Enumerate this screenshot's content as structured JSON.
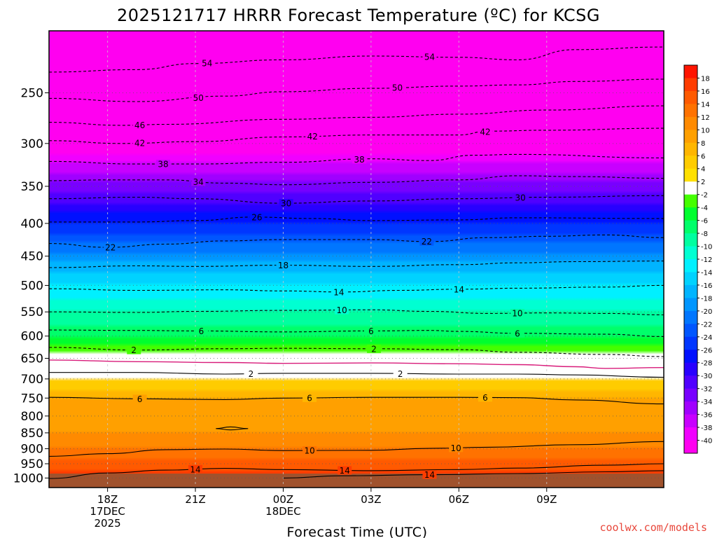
{
  "title": "2025121717 HRRR Forecast Temperature (ºC) for KCSG",
  "xlabel": "Forecast Time (UTC)",
  "credit": "coolwx.com/models",
  "colors": {
    "ground": "#a0522d",
    "background": "#ffffff",
    "freezing_line": "#d81b7a",
    "contour": "#000000"
  },
  "chart_data": {
    "type": "heatmap",
    "title": "2025121717 HRRR Forecast Temperature (ºC) for KCSG",
    "xlabel": "Forecast Time (UTC)",
    "ylabel": "",
    "x_hours": [
      -1,
      20
    ],
    "x_ticks": [
      {
        "hour": 1,
        "lines": [
          "18Z",
          "17DEC",
          "2025"
        ]
      },
      {
        "hour": 4,
        "lines": [
          "21Z"
        ]
      },
      {
        "hour": 7,
        "lines": [
          "00Z",
          "18DEC"
        ]
      },
      {
        "hour": 10,
        "lines": [
          "03Z"
        ]
      },
      {
        "hour": 13,
        "lines": [
          "06Z"
        ]
      },
      {
        "hour": 16,
        "lines": [
          "09Z"
        ]
      }
    ],
    "y_ticks": [
      250,
      300,
      350,
      400,
      450,
      500,
      550,
      600,
      650,
      700,
      750,
      800,
      850,
      900,
      950,
      1000
    ],
    "y_range_hPa": [
      200,
      1035
    ],
    "y_scale": "log-pressure",
    "grid": true,
    "colorbar_ticks": [
      "18",
      "16",
      "14",
      "12",
      "10",
      "8",
      "6",
      "4",
      "2",
      "-2",
      "-4",
      "-6",
      "-8",
      "-10",
      "-12",
      "-14",
      "-16",
      "-18",
      "-20",
      "-22",
      "-24",
      "-26",
      "-28",
      "-30",
      "-32",
      "-34",
      "-36",
      "-38",
      "-40"
    ],
    "colorbar_colors": [
      "#ff1400",
      "#ff3c00",
      "#ff5a00",
      "#ff7200",
      "#ff8a00",
      "#ffa000",
      "#ffb600",
      "#ffcc00",
      "#ffe000",
      "#ffffff",
      "#44ff00",
      "#00ff2e",
      "#00ff6a",
      "#00ffa0",
      "#00ffd2",
      "#00f0ff",
      "#00d2ff",
      "#00b4ff",
      "#0096ff",
      "#0076ff",
      "#0056ff",
      "#0036ff",
      "#0010ff",
      "#2800ff",
      "#5000ff",
      "#7800ff",
      "#a000ff",
      "#c800ff",
      "#f000ff",
      "#ff00f0"
    ],
    "profile": [
      {
        "p": 1000,
        "t": 16
      },
      {
        "p": 950,
        "t": 13
      },
      {
        "p": 900,
        "t": 10
      },
      {
        "p": 850,
        "t": 8
      },
      {
        "p": 800,
        "t": 7
      },
      {
        "p": 750,
        "t": 6
      },
      {
        "p": 700,
        "t": 2
      },
      {
        "p": 650,
        "t": 0
      },
      {
        "p": 600,
        "t": -6
      },
      {
        "p": 550,
        "t": -10
      },
      {
        "p": 500,
        "t": -14
      },
      {
        "p": 450,
        "t": -19
      },
      {
        "p": 400,
        "t": -26
      },
      {
        "p": 350,
        "t": -33
      },
      {
        "p": 300,
        "t": -42
      },
      {
        "p": 250,
        "t": -50
      },
      {
        "p": 220,
        "t": -54
      }
    ],
    "contours": [
      {
        "level": 54,
        "style": "dashed",
        "points": [
          [
            -1,
            232
          ],
          [
            2,
            230
          ],
          [
            4,
            225
          ],
          [
            7,
            222
          ],
          [
            10,
            219
          ],
          [
            13,
            220
          ],
          [
            15,
            222
          ],
          [
            17,
            214
          ],
          [
            20,
            212
          ]
        ],
        "labels": [
          {
            "hour": 4.4,
            "text": "54"
          },
          {
            "hour": 12,
            "text": "54"
          }
        ]
      },
      {
        "level": 50,
        "style": "dashed",
        "points": [
          [
            -1,
            255
          ],
          [
            2,
            258
          ],
          [
            5,
            253
          ],
          [
            7,
            249
          ],
          [
            10,
            246
          ],
          [
            13,
            244
          ],
          [
            15,
            243
          ],
          [
            17,
            240
          ],
          [
            20,
            238
          ]
        ],
        "labels": [
          {
            "hour": 4.1,
            "text": "50"
          },
          {
            "hour": 10.9,
            "text": "50"
          }
        ]
      },
      {
        "level": 46,
        "style": "dashed",
        "points": [
          [
            -1,
            278
          ],
          [
            1.5,
            281
          ],
          [
            3,
            280
          ],
          [
            7,
            275
          ],
          [
            10,
            273
          ],
          [
            13,
            270
          ],
          [
            16,
            266
          ],
          [
            20,
            262
          ]
        ],
        "labels": [
          {
            "hour": 2.1,
            "text": "46"
          }
        ]
      },
      {
        "level": 42,
        "style": "dashed",
        "points": [
          [
            -1,
            297
          ],
          [
            1.5,
            300
          ],
          [
            4,
            298
          ],
          [
            7,
            293
          ],
          [
            10,
            291
          ],
          [
            13,
            291
          ],
          [
            14,
            287
          ],
          [
            16,
            286
          ],
          [
            20,
            284
          ]
        ],
        "labels": [
          {
            "hour": 2.1,
            "text": "42"
          },
          {
            "hour": 8,
            "text": "42"
          },
          {
            "hour": 13.9,
            "text": "42"
          }
        ]
      },
      {
        "level": 38,
        "style": "dashed",
        "points": [
          [
            -1,
            320
          ],
          [
            2,
            323
          ],
          [
            4,
            323
          ],
          [
            7,
            321
          ],
          [
            10,
            317
          ],
          [
            12,
            319
          ],
          [
            13.5,
            313
          ],
          [
            15,
            312
          ],
          [
            20,
            316
          ]
        ],
        "labels": [
          {
            "hour": 2.9,
            "text": "38"
          },
          {
            "hour": 9.6,
            "text": "38"
          }
        ]
      },
      {
        "level": 34,
        "style": "dashed",
        "points": [
          [
            -1,
            343
          ],
          [
            1,
            342
          ],
          [
            3,
            342
          ],
          [
            5,
            346
          ],
          [
            7,
            348
          ],
          [
            10,
            345
          ],
          [
            13,
            342
          ],
          [
            15,
            337
          ],
          [
            17,
            338
          ],
          [
            20,
            340
          ]
        ],
        "labels": [
          {
            "hour": 4.1,
            "text": "34"
          }
        ]
      },
      {
        "level": 30,
        "style": "dashed",
        "points": [
          [
            -1,
            366
          ],
          [
            2,
            364
          ],
          [
            4,
            366
          ],
          [
            7,
            372
          ],
          [
            10,
            369
          ],
          [
            13,
            366
          ],
          [
            16,
            364
          ],
          [
            20,
            362
          ]
        ],
        "labels": [
          {
            "hour": 7.1,
            "text": "30"
          },
          {
            "hour": 15.1,
            "text": "30"
          }
        ]
      },
      {
        "level": 26,
        "style": "dashed",
        "points": [
          [
            -1,
            398
          ],
          [
            2,
            398
          ],
          [
            4,
            396
          ],
          [
            6,
            391
          ],
          [
            8,
            393
          ],
          [
            10,
            396
          ],
          [
            13,
            395
          ],
          [
            15,
            392
          ],
          [
            20,
            393
          ]
        ],
        "labels": [
          {
            "hour": 6.1,
            "text": "26"
          }
        ]
      },
      {
        "level": 22,
        "style": "dashed",
        "points": [
          [
            -1,
            430
          ],
          [
            1,
            436
          ],
          [
            3,
            431
          ],
          [
            5,
            426
          ],
          [
            7,
            424
          ],
          [
            10,
            424
          ],
          [
            12,
            427
          ],
          [
            14,
            421
          ],
          [
            16,
            419
          ],
          [
            18,
            417
          ],
          [
            20,
            421
          ]
        ],
        "labels": [
          {
            "hour": 1.1,
            "text": "22"
          },
          {
            "hour": 11.9,
            "text": "22"
          }
        ]
      },
      {
        "level": 18,
        "style": "dashed",
        "points": [
          [
            -1,
            469
          ],
          [
            2,
            466
          ],
          [
            4,
            467
          ],
          [
            7,
            465
          ],
          [
            10,
            467
          ],
          [
            13,
            464
          ],
          [
            15,
            461
          ],
          [
            17,
            459
          ],
          [
            20,
            458
          ]
        ],
        "labels": [
          {
            "hour": 7,
            "text": "18"
          }
        ]
      },
      {
        "level": 14,
        "style": "dashed",
        "points": [
          [
            -1,
            506
          ],
          [
            2,
            509
          ],
          [
            5,
            508
          ],
          [
            7,
            510
          ],
          [
            9,
            512
          ],
          [
            11,
            509
          ],
          [
            13,
            507
          ],
          [
            15,
            505
          ],
          [
            18,
            503
          ],
          [
            20,
            500
          ]
        ],
        "labels": [
          {
            "hour": 8.9,
            "text": "14"
          },
          {
            "hour": 13,
            "text": "14"
          }
        ]
      },
      {
        "level": 10,
        "style": "dashed",
        "points": [
          [
            -1,
            550
          ],
          [
            2,
            551
          ],
          [
            4,
            549
          ],
          [
            7,
            547
          ],
          [
            10,
            546
          ],
          [
            12,
            549
          ],
          [
            14,
            553
          ],
          [
            16,
            552
          ],
          [
            18,
            553
          ],
          [
            20,
            556
          ]
        ],
        "labels": [
          {
            "hour": 9,
            "text": "10"
          },
          {
            "hour": 15,
            "text": "10"
          }
        ]
      },
      {
        "level": 6,
        "style": "dashed",
        "points": [
          [
            -1,
            587
          ],
          [
            2,
            588
          ],
          [
            4,
            589
          ],
          [
            7,
            591
          ],
          [
            10,
            589
          ],
          [
            12,
            588
          ],
          [
            13,
            590
          ],
          [
            15,
            594
          ],
          [
            18,
            596
          ],
          [
            20,
            601
          ]
        ],
        "labels": [
          {
            "hour": 4.2,
            "text": "6"
          },
          {
            "hour": 10,
            "text": "6"
          },
          {
            "hour": 15,
            "text": "6"
          }
        ]
      },
      {
        "level": 2,
        "style": "dashed",
        "points": [
          [
            -1,
            625
          ],
          [
            2,
            631
          ],
          [
            5,
            628
          ],
          [
            7,
            627
          ],
          [
            10,
            628
          ],
          [
            13,
            630
          ],
          [
            15,
            636
          ],
          [
            18,
            641
          ],
          [
            20,
            646
          ]
        ],
        "labels": [
          {
            "hour": 1.9,
            "text": "2"
          },
          {
            "hour": 10.1,
            "text": "2"
          }
        ]
      },
      {
        "level": 0,
        "style": "freezing",
        "points": [
          [
            -1,
            654
          ],
          [
            2,
            658
          ],
          [
            5,
            660
          ],
          [
            7,
            662
          ],
          [
            10,
            661
          ],
          [
            13,
            663
          ],
          [
            15,
            665
          ],
          [
            17,
            670
          ],
          [
            18,
            674
          ],
          [
            20,
            672
          ]
        ],
        "labels": []
      },
      {
        "level": 2,
        "style": "solid",
        "points": [
          [
            -1,
            684
          ],
          [
            2,
            684
          ],
          [
            5,
            688
          ],
          [
            7,
            686
          ],
          [
            10,
            686
          ],
          [
            13,
            688
          ],
          [
            15,
            688
          ],
          [
            17,
            690
          ],
          [
            20,
            696
          ]
        ],
        "labels": [
          {
            "hour": 5.9,
            "text": "2"
          },
          {
            "hour": 11,
            "text": "2"
          }
        ]
      },
      {
        "level": 6,
        "style": "solid",
        "points": [
          [
            -1,
            748
          ],
          [
            2,
            752
          ],
          [
            5,
            754
          ],
          [
            7,
            750
          ],
          [
            10,
            748
          ],
          [
            13,
            748
          ],
          [
            15,
            749
          ],
          [
            17,
            755
          ],
          [
            20,
            766
          ]
        ],
        "labels": [
          {
            "hour": 2.1,
            "text": "6"
          },
          {
            "hour": 7.9,
            "text": "6"
          },
          {
            "hour": 13.9,
            "text": "6"
          }
        ]
      },
      {
        "level": 10,
        "style": "solid",
        "points": [
          [
            -1,
            925
          ],
          [
            1,
            916
          ],
          [
            3,
            903
          ],
          [
            5,
            901
          ],
          [
            7,
            906
          ],
          [
            10,
            905
          ],
          [
            12,
            899
          ],
          [
            14,
            895
          ],
          [
            17,
            887
          ],
          [
            20,
            877
          ]
        ],
        "labels": [
          {
            "hour": 7.9,
            "text": "10"
          },
          {
            "hour": 12.9,
            "text": "10"
          }
        ]
      },
      {
        "level": 14,
        "style": "solid",
        "points": [
          [
            -1,
            1002
          ],
          [
            1,
            982
          ],
          [
            3,
            972
          ],
          [
            5,
            966
          ],
          [
            7,
            970
          ],
          [
            10,
            974
          ],
          [
            13,
            970
          ],
          [
            15,
            965
          ],
          [
            18,
            955
          ],
          [
            20,
            950
          ]
        ],
        "labels": [
          {
            "hour": 4,
            "text": "14"
          },
          {
            "hour": 9.1,
            "text": "14"
          }
        ]
      },
      {
        "level": 14,
        "style": "solid",
        "points": [
          [
            7,
            1000
          ],
          [
            9,
            992
          ],
          [
            12,
            988
          ],
          [
            15,
            984
          ],
          [
            18,
            978
          ],
          [
            20,
            974
          ]
        ],
        "labels": [
          {
            "hour": 12,
            "text": "14"
          }
        ]
      },
      {
        "level": 10,
        "style": "solid",
        "points": [
          [
            4.7,
            837
          ],
          [
            5.2,
            832
          ],
          [
            5.8,
            837
          ],
          [
            5.2,
            841
          ],
          [
            4.7,
            837
          ]
        ],
        "labels": []
      }
    ]
  }
}
